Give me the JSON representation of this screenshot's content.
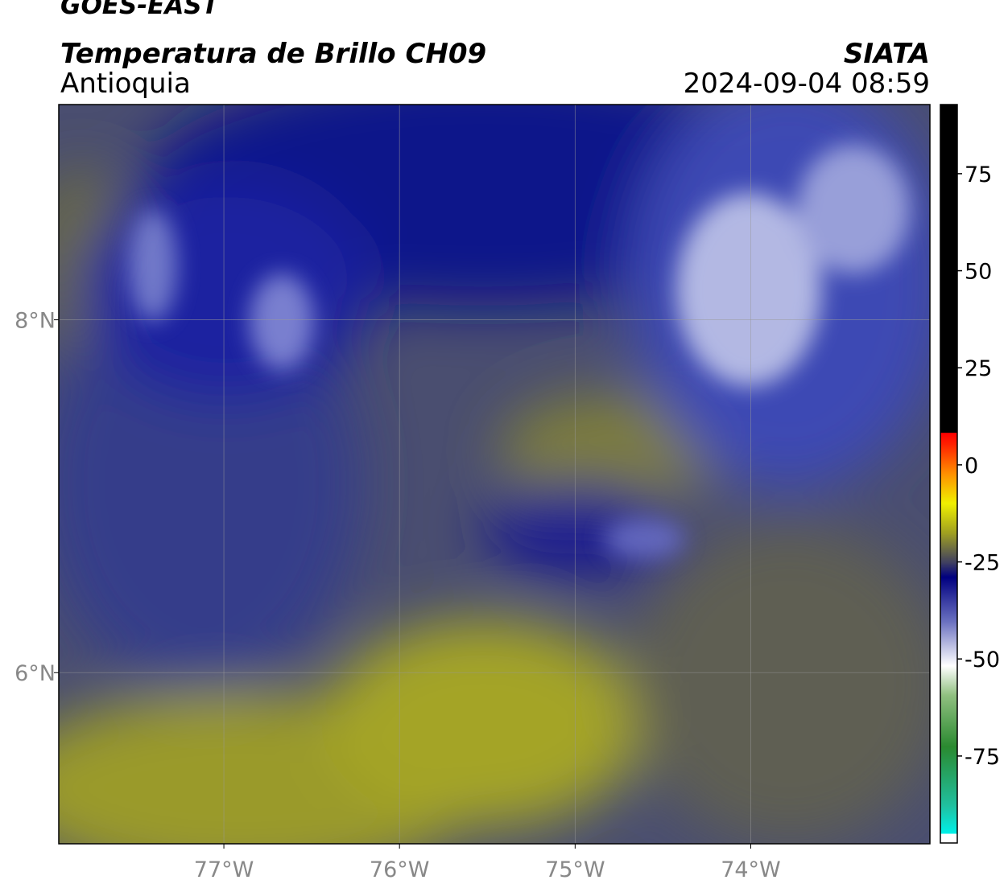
{
  "header": {
    "title": "GOES-EAST",
    "subtitle": "Temperatura de Brillo CH09",
    "region": "Antioquia",
    "source": "SIATA",
    "timestamp": "2024-09-04 08:59"
  },
  "map": {
    "xlim": [
      -77.94,
      -72.98
    ],
    "ylim": [
      5.03,
      9.22
    ],
    "xticks": [
      {
        "value": -77,
        "label": "77°W"
      },
      {
        "value": -76,
        "label": "76°W"
      },
      {
        "value": -75,
        "label": "75°W"
      },
      {
        "value": -74,
        "label": "74°W"
      }
    ],
    "yticks": [
      {
        "value": 8,
        "label": "8°N"
      },
      {
        "value": 6,
        "label": "6°N"
      }
    ]
  },
  "colorbar": {
    "lim": [
      -97.4,
      92.8
    ],
    "ticks": [
      75,
      50,
      25,
      0,
      -25,
      -50,
      -75
    ]
  }
}
